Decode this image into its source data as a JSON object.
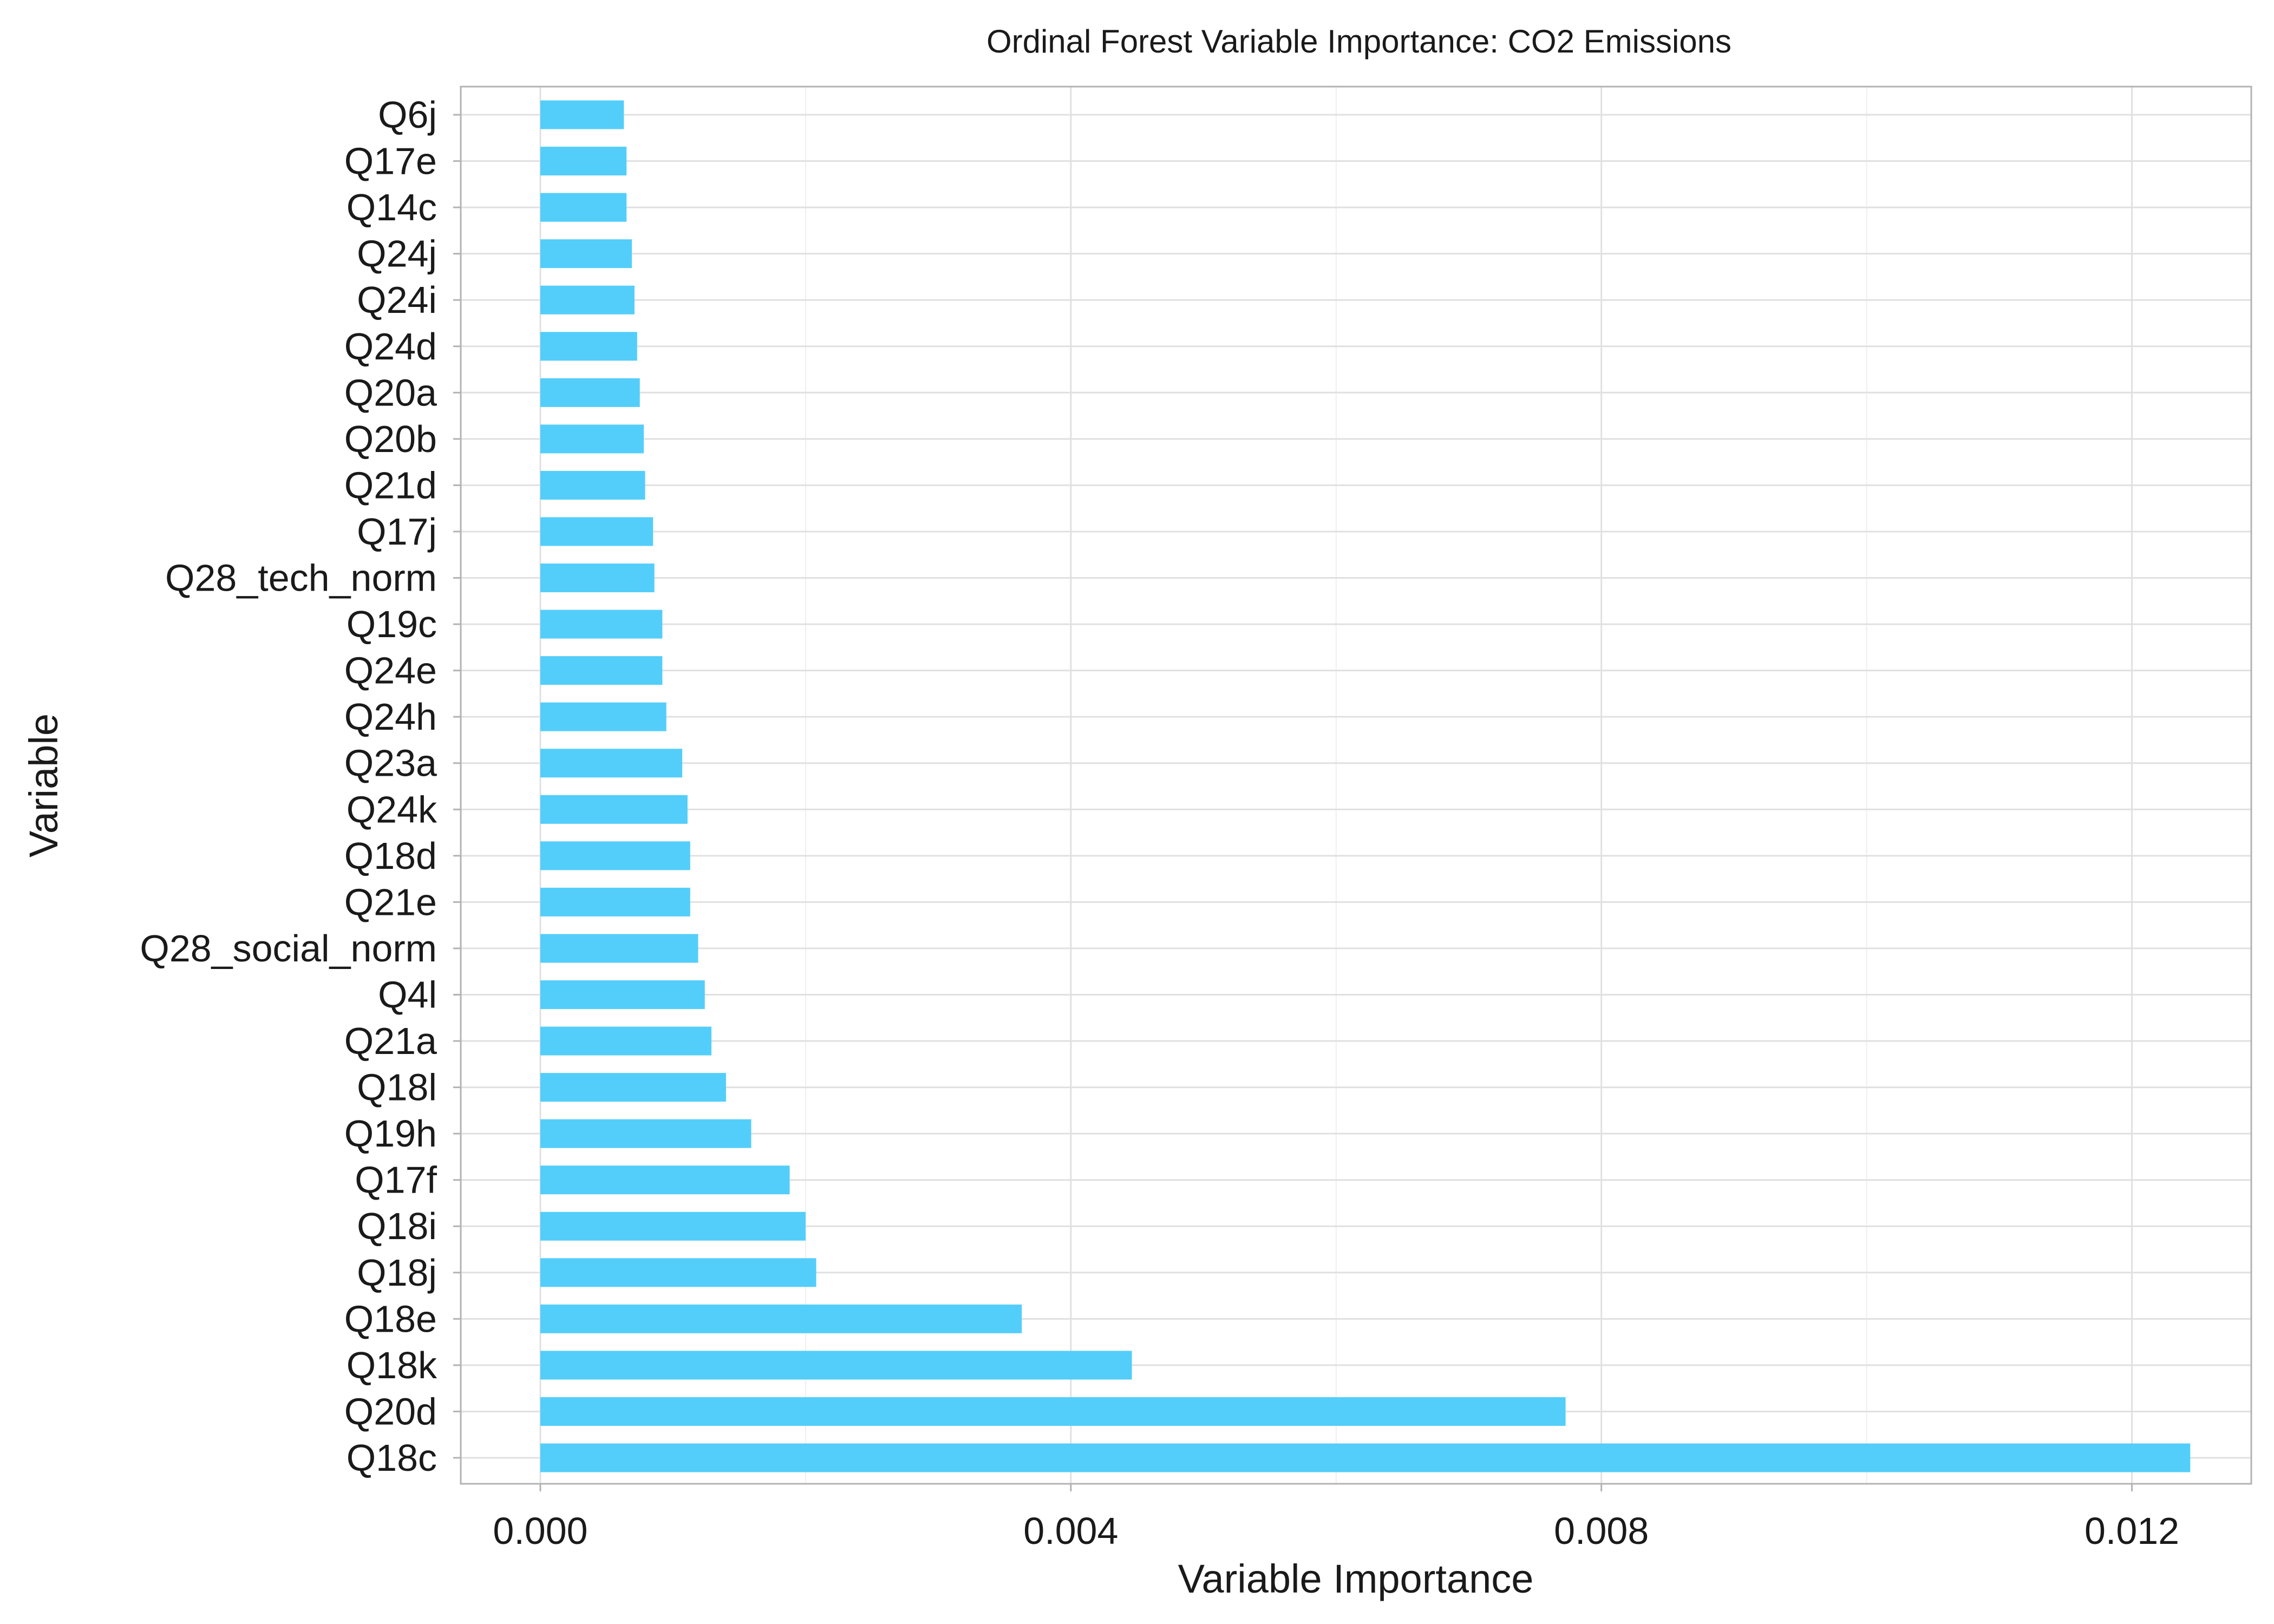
{
  "chart_data": {
    "type": "bar",
    "orientation": "horizontal",
    "title": "Ordinal Forest Variable Importance: CO2 Emissions",
    "xlabel": "Variable Importance",
    "ylabel": "Variable",
    "xlim": [
      -0.0006,
      0.0129
    ],
    "xticks": [
      0.0,
      0.004,
      0.008,
      0.012
    ],
    "xtick_labels": [
      "0.000",
      "0.004",
      "0.008",
      "0.012"
    ],
    "grid": true,
    "bar_color": "#53CEFA",
    "categories": [
      "Q6j",
      "Q17e",
      "Q14c",
      "Q24j",
      "Q24i",
      "Q24d",
      "Q20a",
      "Q20b",
      "Q21d",
      "Q17j",
      "Q28_tech_norm",
      "Q19c",
      "Q24e",
      "Q24h",
      "Q23a",
      "Q24k",
      "Q18d",
      "Q21e",
      "Q28_social_norm",
      "Q4l",
      "Q21a",
      "Q18l",
      "Q19h",
      "Q17f",
      "Q18i",
      "Q18j",
      "Q18e",
      "Q18k",
      "Q20d",
      "Q18c"
    ],
    "values": [
      0.00063,
      0.00065,
      0.00065,
      0.00069,
      0.00071,
      0.00073,
      0.00075,
      0.00078,
      0.00079,
      0.00085,
      0.00086,
      0.00092,
      0.00092,
      0.00095,
      0.00107,
      0.00111,
      0.00113,
      0.00113,
      0.00119,
      0.00124,
      0.00129,
      0.0014,
      0.00159,
      0.00188,
      0.002,
      0.00208,
      0.00363,
      0.00446,
      0.00773,
      0.01244
    ]
  }
}
